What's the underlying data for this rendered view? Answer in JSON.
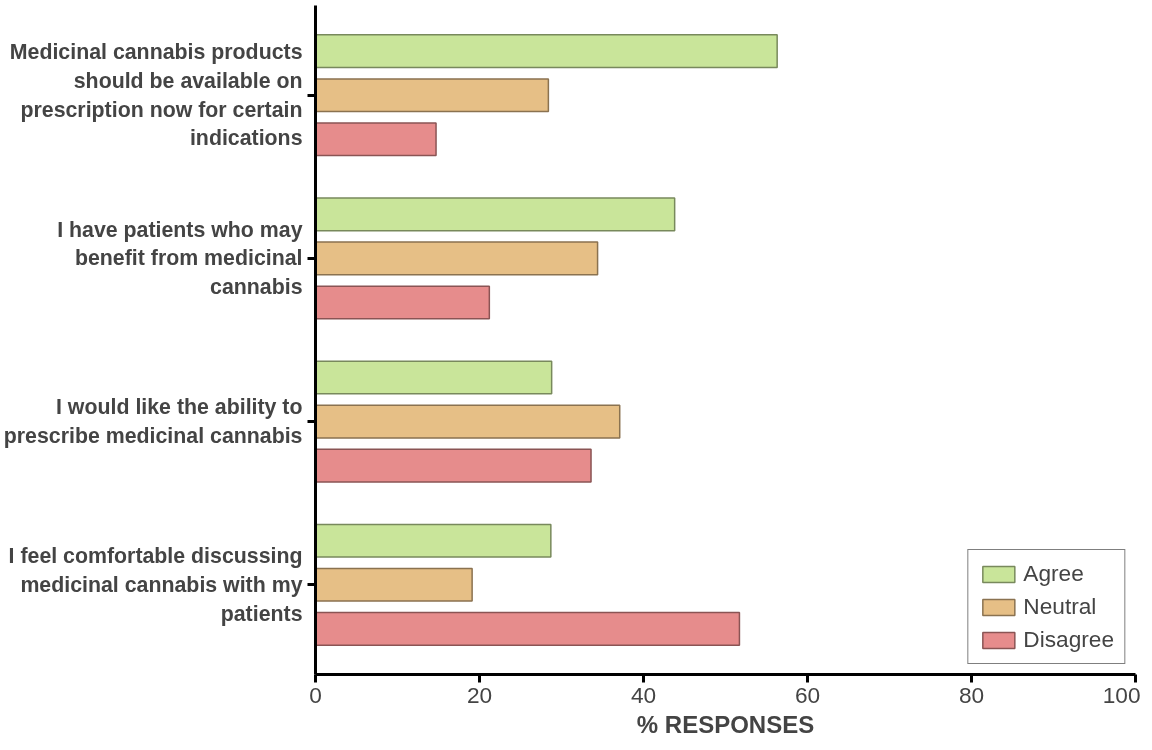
{
  "chart_data": {
    "type": "bar",
    "orientation": "horizontal",
    "categories": [
      "Medicinal cannabis products should be available on prescription now for certain indications",
      "I have patients who may benefit from medicinal cannabis",
      "I would like the ability to prescribe medicinal cannabis",
      "I feel comfortable discussing medicinal cannabis with my patients"
    ],
    "series": [
      {
        "name": "Agree",
        "color": "#c9e59a",
        "values": [
          56.3,
          43.8,
          28.8,
          28.7
        ]
      },
      {
        "name": "Neutral",
        "color": "#e6bf86",
        "values": [
          28.4,
          34.4,
          37.1,
          19.1
        ]
      },
      {
        "name": "Disagree",
        "color": "#e68c8c",
        "values": [
          14.7,
          21.2,
          33.6,
          51.7
        ]
      }
    ],
    "xlabel": "% RESPONSES",
    "xlim": [
      0,
      100
    ],
    "xticks": [
      0,
      20,
      40,
      60,
      80,
      100
    ],
    "grid": false,
    "legend": "bottom right"
  }
}
